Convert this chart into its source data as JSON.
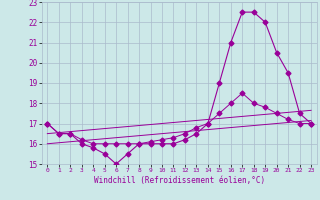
{
  "xlabel": "Windchill (Refroidissement éolien,°C)",
  "hours": [
    0,
    1,
    2,
    3,
    4,
    5,
    6,
    7,
    8,
    9,
    10,
    11,
    12,
    13,
    14,
    15,
    16,
    17,
    18,
    19,
    20,
    21,
    22,
    23
  ],
  "windchill": [
    17,
    16.5,
    16.5,
    16,
    15.8,
    15.5,
    15,
    15.5,
    16,
    16,
    16,
    16,
    16.2,
    16.5,
    17,
    19,
    21,
    22.5,
    22.5,
    22,
    20.5,
    19.5,
    17.5,
    17
  ],
  "temp": [
    17,
    16.5,
    16.5,
    16.2,
    16,
    16,
    16,
    16,
    16,
    16.1,
    16.2,
    16.3,
    16.5,
    16.8,
    17,
    17.5,
    18,
    18.5,
    18,
    17.8,
    17.5,
    17.2,
    17,
    17
  ],
  "linear1": [
    16.5,
    16.55,
    16.6,
    16.65,
    16.7,
    16.75,
    16.8,
    16.85,
    16.9,
    16.95,
    17.0,
    17.05,
    17.1,
    17.15,
    17.2,
    17.25,
    17.3,
    17.35,
    17.4,
    17.45,
    17.5,
    17.55,
    17.6,
    17.65
  ],
  "linear2": [
    16.0,
    16.05,
    16.1,
    16.15,
    16.2,
    16.25,
    16.3,
    16.35,
    16.4,
    16.45,
    16.5,
    16.55,
    16.6,
    16.65,
    16.7,
    16.75,
    16.8,
    16.85,
    16.9,
    16.95,
    17.0,
    17.05,
    17.1,
    17.15
  ],
  "ylim": [
    15,
    23
  ],
  "yticks": [
    15,
    16,
    17,
    18,
    19,
    20,
    21,
    22,
    23
  ],
  "bg_color": "#cce8e8",
  "grid_color": "#aabbcc",
  "line_color": "#990099",
  "marker": "D",
  "markersize": 2.5
}
